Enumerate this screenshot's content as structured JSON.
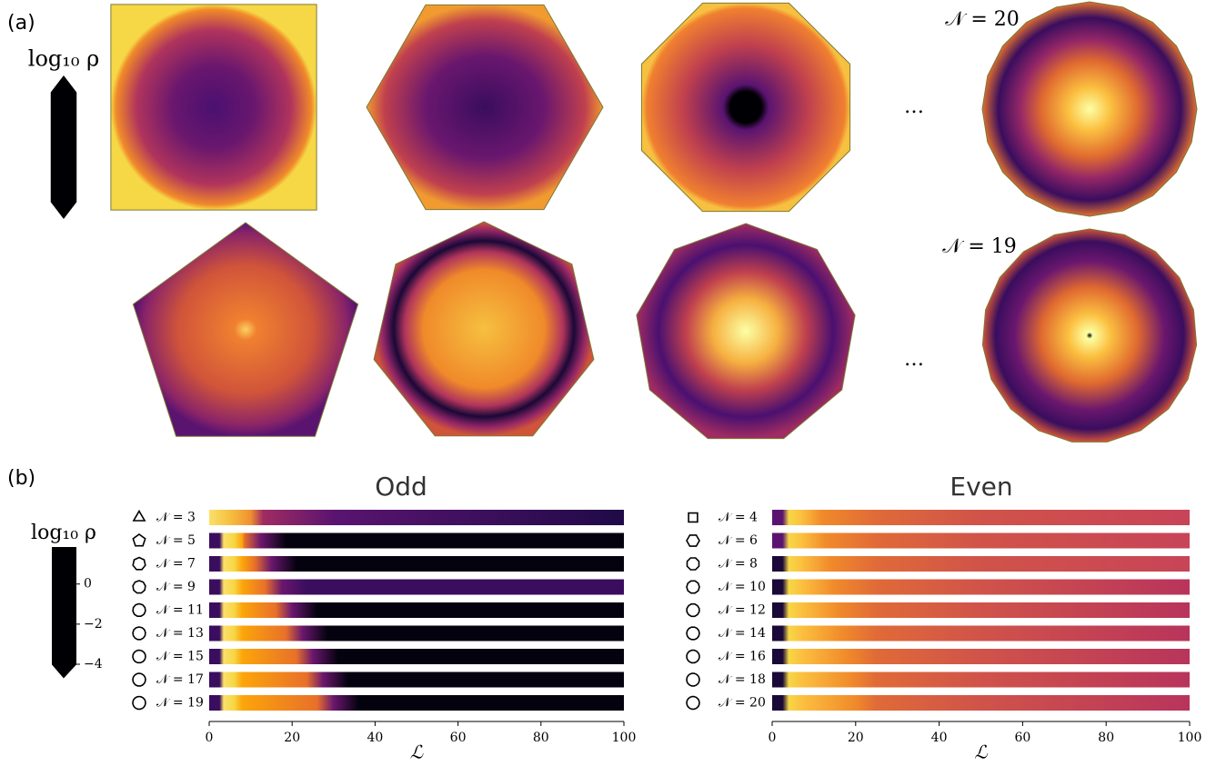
{
  "panel_labels": [
    "(a)",
    "(b)"
  ],
  "colorbar_a": {
    "label": "log₁₀ ρ"
  },
  "annotations_a": [
    "𝒩 = 20",
    "𝒩 = 19"
  ],
  "ellipses_a": [
    "…",
    "…"
  ],
  "colorbar_b": {
    "label": "log₁₀ ρ",
    "ylim": [
      -4,
      1.8
    ],
    "yticks": [
      {
        "value": 0,
        "label": "0"
      },
      {
        "value": -2,
        "label": "−2"
      },
      {
        "value": -4,
        "label": "−4"
      }
    ]
  },
  "chart_data": [
    {
      "type": "heatmap-strips",
      "title": "Odd",
      "x_label": "ℒ",
      "rows": [
        "𝒩 = 3",
        "𝒩 = 5",
        "𝒩 = 7",
        "𝒩 = 9",
        "𝒩 = 11",
        "𝒩 = 13",
        "𝒩 = 15",
        "𝒩 = 17",
        "𝒩 = 19"
      ],
      "xlim": [
        0,
        100
      ],
      "xticks": [
        0,
        20,
        40,
        60,
        80,
        100
      ]
    },
    {
      "type": "heatmap-strips",
      "title": "Even",
      "x_label": "ℒ",
      "rows": [
        "𝒩 = 4",
        "𝒩 = 6",
        "𝒩 = 8",
        "𝒩 = 10",
        "𝒩 = 12",
        "𝒩 = 14",
        "𝒩 = 16",
        "𝒩 = 18",
        "𝒩 = 20"
      ],
      "xlim": [
        0,
        100
      ],
      "xticks": [
        0,
        20,
        40,
        60,
        80,
        100
      ]
    }
  ]
}
